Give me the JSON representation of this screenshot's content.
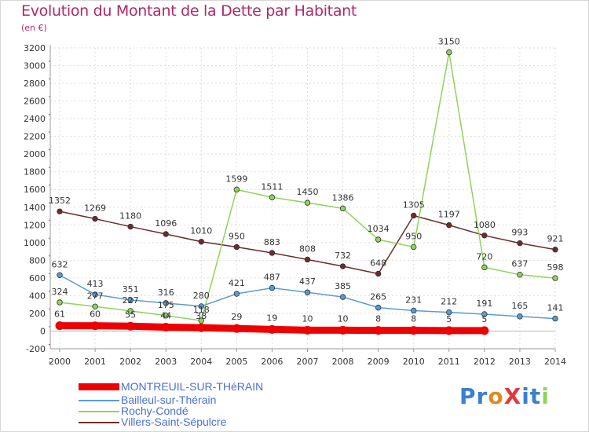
{
  "title": "Evolution du Montant de la Dette par Habitant",
  "subtitle": "(en €)",
  "logo": "ProXiti",
  "chart_data": {
    "type": "line",
    "title": "Evolution du Montant de la Dette par Habitant",
    "ylabel": "(en €)",
    "xlabel": "",
    "ylim": [
      -200,
      3200
    ],
    "yticks": [
      -200,
      0,
      200,
      400,
      600,
      800,
      1000,
      1200,
      1400,
      1600,
      1800,
      2000,
      2200,
      2400,
      2600,
      2800,
      3000,
      3200
    ],
    "categories": [
      "2000",
      "2001",
      "2002",
      "2003",
      "2004",
      "2005",
      "2006",
      "2007",
      "2008",
      "2009",
      "2010",
      "2011",
      "2012",
      "2013",
      "2014"
    ],
    "series": [
      {
        "name": "MONTREUIL-SUR-THéRAIN",
        "color": "#ee0000",
        "values": [
          61,
          60,
          55,
          44,
          38,
          29,
          19,
          10,
          10,
          8,
          8,
          5,
          5,
          null,
          null
        ],
        "labels": [
          "61",
          "60",
          "55",
          "44",
          "38",
          "29",
          "19",
          "10",
          "10",
          "8",
          "8",
          "5",
          "5",
          "",
          ""
        ]
      },
      {
        "name": "Bailleul-sur-Thérain",
        "color": "#5b9bd5",
        "values": [
          632,
          413,
          351,
          316,
          280,
          421,
          487,
          437,
          385,
          265,
          231,
          212,
          191,
          165,
          141
        ],
        "labels": [
          "632",
          "413",
          "351",
          "316",
          "280",
          "421",
          "487",
          "437",
          "385",
          "265",
          "231",
          "212",
          "191",
          "165",
          "141"
        ]
      },
      {
        "name": "Rochy-Condé",
        "color": "#8ed45a",
        "values": [
          324,
          277,
          227,
          175,
          118,
          1599,
          1511,
          1450,
          1386,
          1034,
          950,
          3150,
          720,
          637,
          598
        ],
        "labels": [
          "324",
          "277",
          "227",
          "175",
          "118",
          "1599",
          "1511",
          "1450",
          "1386",
          "1034",
          "950",
          "3150",
          "720",
          "637",
          "598"
        ]
      },
      {
        "name": "Villers-Saint-Sépulcre",
        "color": "#6e2b2b",
        "values": [
          1352,
          1269,
          1180,
          1096,
          1010,
          950,
          883,
          808,
          732,
          648,
          1305,
          1197,
          1080,
          993,
          921
        ],
        "labels": [
          "1352",
          "1269",
          "1180",
          "1096",
          "1010",
          "950",
          "883",
          "808",
          "732",
          "648",
          "1305",
          "1197",
          "1080",
          "993",
          "921"
        ]
      }
    ],
    "legend_position": "bottom-left"
  }
}
